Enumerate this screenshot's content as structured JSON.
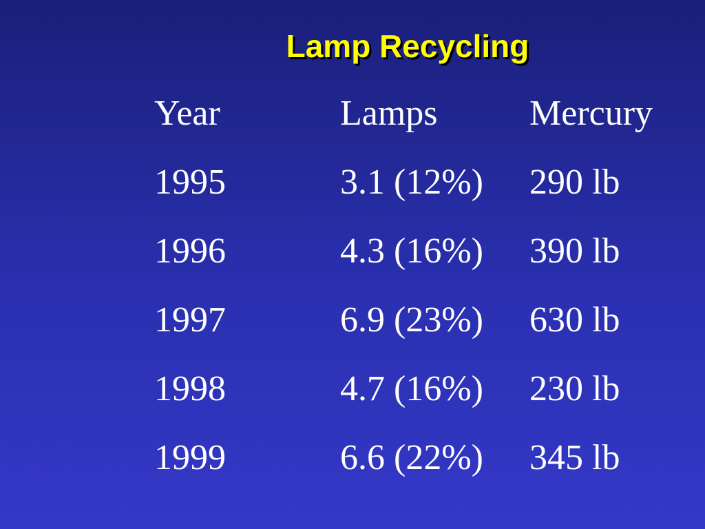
{
  "header": {
    "title": "Lamp Recycling"
  },
  "table": {
    "columns": [
      "Year",
      "Lamps",
      "Mercury"
    ],
    "rows": [
      [
        "1995",
        "3.1 (12%)",
        "290 lb"
      ],
      [
        "1996",
        "4.3 (16%)",
        "390 lb"
      ],
      [
        "1997",
        "6.9 (23%)",
        "630 lb"
      ],
      [
        "1998",
        "4.7 (16%)",
        "230 lb"
      ],
      [
        "1999",
        "6.6 (22%)",
        "345 lb"
      ]
    ]
  }
}
